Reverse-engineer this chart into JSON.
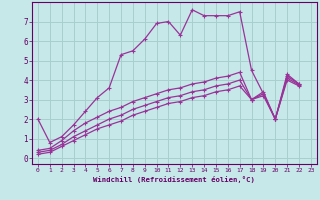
{
  "bg_color": "#c6e8e8",
  "grid_color": "#a8cece",
  "line_color": "#993399",
  "xlabel": "Windchill (Refroidissement éolien,°C)",
  "xlabel_color": "#660066",
  "tick_color": "#660066",
  "xlim": [
    -0.5,
    23.5
  ],
  "ylim": [
    -0.3,
    8.0
  ],
  "yticks": [
    0,
    1,
    2,
    3,
    4,
    5,
    6,
    7
  ],
  "xticks": [
    0,
    1,
    2,
    3,
    4,
    5,
    6,
    7,
    8,
    9,
    10,
    11,
    12,
    13,
    14,
    15,
    16,
    17,
    18,
    19,
    20,
    21,
    22,
    23
  ],
  "series": [
    [
      2.0,
      0.8,
      1.1,
      1.7,
      2.4,
      3.1,
      3.6,
      5.3,
      5.5,
      6.1,
      6.9,
      7.0,
      6.3,
      7.6,
      7.3,
      7.3,
      7.3,
      7.5,
      4.5,
      3.3,
      2.0,
      4.3,
      3.8
    ],
    [
      0.4,
      0.5,
      0.9,
      1.4,
      1.8,
      2.1,
      2.4,
      2.6,
      2.9,
      3.1,
      3.3,
      3.5,
      3.6,
      3.8,
      3.9,
      4.1,
      4.2,
      4.4,
      3.0,
      3.4,
      2.0,
      4.2,
      3.8
    ],
    [
      0.3,
      0.4,
      0.7,
      1.1,
      1.4,
      1.7,
      2.0,
      2.2,
      2.5,
      2.7,
      2.9,
      3.1,
      3.2,
      3.4,
      3.5,
      3.7,
      3.8,
      4.0,
      3.0,
      3.3,
      2.0,
      4.1,
      3.75
    ],
    [
      0.2,
      0.3,
      0.6,
      0.9,
      1.2,
      1.5,
      1.7,
      1.9,
      2.2,
      2.4,
      2.6,
      2.8,
      2.9,
      3.1,
      3.2,
      3.4,
      3.5,
      3.7,
      3.0,
      3.2,
      2.0,
      4.0,
      3.7
    ]
  ]
}
